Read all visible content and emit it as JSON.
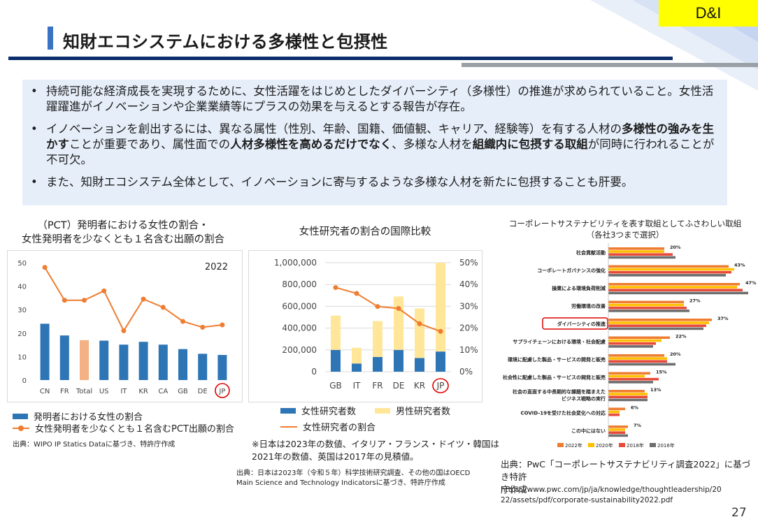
{
  "tag": "D&I",
  "title": "知財エコシステムにおける多様性と包摂性",
  "bullets": [
    [
      "持続可能な経済成長を実現するために、女性活躍をはじめとしたダイバーシティ（多様性）の推進が求められていること。女性活躍躍進がイノベーションや企業業績等にプラスの効果を与えるとする報告が存在。"
    ],
    [
      "イノベーションを創出するには、異なる属性（性別、年齢、国籍、価値観、キャリア、経験等）を有する人材の",
      "多様性の強みを生かす",
      "ことが重要であり、属性面での",
      "人材多様性を高めるだけでなく",
      "、多様な人材を",
      "組織内に包摂する取組",
      "が同時に行われることが不可欠。"
    ],
    [
      "また、知財エコシステム全体として、イノベーションに寄与するような多様な人材を新たに包摂することも肝要。"
    ]
  ],
  "chart1": {
    "title_line1": "（PCT）発明者における女性の割合・",
    "title_line2": "女性発明者を少なくとも１名含む出願の割合",
    "year_label": "2022",
    "legend_bar": "発明者における女性の割合",
    "legend_line": "女性発明者を少なくとも１名含むPCT出願の割合",
    "source": "出典：WIPO IP Statics Dataに基づき、特許庁作成"
  },
  "chart2": {
    "title": "女性研究者の割合の国際比較",
    "legend_female": "女性研究者数",
    "legend_male": "男性研究者数",
    "legend_ratio": "女性研究者の割合",
    "note_line1": "※日本は2023年の数値、イタリア・フランス・ドイツ・韓国は",
    "note_line2": "2021年の数値、英国は2017年の見積値。",
    "source_line1": "出典：日本は2023年（令和５年）科学技術研究調査、その他の国はOECD",
    "source_line2": "Main Science and Technology Indicatorsに基づき、特許庁作成"
  },
  "chart3": {
    "title_line1": "コーポレートサステナビリティを表す取組としてふさわしい取組",
    "title_line2": "（各社3つまで選択）",
    "source_line1": "出典：PwC「コーポレートサステナビリティ調査2022」に基づき特許",
    "source_line2": "庁作成",
    "url_line1": "https://www.pwc.com/jp/ja/knowledge/thoughtleadership/20",
    "url_line2": "22/assets/pdf/corporate-sustainability2022.pdf"
  },
  "page_number": "27",
  "chart_data": [
    {
      "type": "bar",
      "categories": [
        "CN",
        "FR",
        "Total",
        "US",
        "IT",
        "KR",
        "CA",
        "GB",
        "DE",
        "JP"
      ],
      "highlight_category": "JP",
      "series": [
        {
          "name": "発明者における女性の割合",
          "kind": "bar",
          "values": [
            24,
            19,
            17,
            16.8,
            15.1,
            16.3,
            15.1,
            13.2,
            11.2,
            10.7
          ],
          "color": "#2e75b6",
          "highlight_color": "#f4b183"
        },
        {
          "name": "女性発明者を少なくとも１名含むPCT出願の割合",
          "kind": "line",
          "values": [
            48,
            34,
            34,
            38,
            21,
            34.5,
            31,
            25,
            22.5,
            23.5
          ],
          "color": "#ef7d31"
        }
      ],
      "ylim": [
        0,
        50
      ],
      "yticks": [
        0,
        10,
        20,
        30,
        40,
        50
      ],
      "grid": false,
      "legend_position": "bottom"
    },
    {
      "type": "bar",
      "stacked": true,
      "categories": [
        "GB",
        "IT",
        "FR",
        "DE",
        "KR",
        "JP"
      ],
      "highlight_category": "JP",
      "series": [
        {
          "name": "女性研究者数",
          "kind": "bar",
          "values": [
            200000,
            75000,
            135000,
            200000,
            125000,
            185000
          ],
          "color": "#2e75b6"
        },
        {
          "name": "男性研究者数",
          "kind": "bar",
          "values": [
            315000,
            145000,
            330000,
            490000,
            455000,
            815000
          ],
          "color": "#ffe699"
        },
        {
          "name": "女性研究者の割合",
          "kind": "line",
          "axis": "right",
          "values": [
            38.6,
            35.9,
            29.9,
            29.0,
            22.0,
            18.5
          ],
          "color": "#ef7d31"
        }
      ],
      "ylim": [
        0,
        1000000
      ],
      "yticks": [
        "0",
        "200,000",
        "400,000",
        "600,000",
        "800,000",
        "1,000,000"
      ],
      "y2lim": [
        0,
        50
      ],
      "y2ticks": [
        "0%",
        "10%",
        "20%",
        "30%",
        "40%",
        "50%"
      ],
      "grid": true,
      "legend_position": "bottom"
    },
    {
      "type": "bar",
      "orientation": "horizontal",
      "categories": [
        "社会貢献活動",
        "コーポレートガバナンスの強化",
        "操業による環境負荷削減",
        "労働環境の改善",
        "ダイバーシティの推進",
        "サプライチェーンにおける環境・社会配慮",
        "環境に配慮した製品・サービスの開発と販売",
        "社会性に配慮した製品・サービスの開発と販売",
        "社会の直面する中長期的な課題を踏まえたビジネス戦略の実行",
        "COVID-19を受けた社会変化への対応",
        "この中にはない"
      ],
      "highlight_category": "ダイバーシティの推進",
      "value_labels": [
        "20%",
        "43%",
        "47%",
        "27%",
        "37%",
        "22%",
        "20%",
        "15%",
        "13%",
        "6%",
        "7%"
      ],
      "series": [
        {
          "name": "2022年",
          "values": [
            20,
            43,
            47,
            27,
            37,
            22,
            20,
            15,
            13,
            6,
            7
          ],
          "color": "#ef7d31"
        },
        {
          "name": "2020年",
          "values": [
            20,
            45,
            46,
            27,
            36,
            19,
            21,
            13,
            14,
            4,
            6
          ],
          "color": "#ffc000"
        },
        {
          "name": "2018年",
          "values": [
            23,
            44,
            48,
            28,
            35,
            17,
            21,
            18,
            14,
            4,
            6
          ],
          "color": "#e84a3a"
        },
        {
          "name": "2016年",
          "values": [
            24,
            42,
            50,
            29,
            34,
            16,
            24,
            16,
            14,
            0,
            7
          ],
          "color": "#6e6e6e"
        }
      ],
      "xlim": [
        0,
        50
      ],
      "grid": false,
      "legend_position": "bottom"
    }
  ]
}
